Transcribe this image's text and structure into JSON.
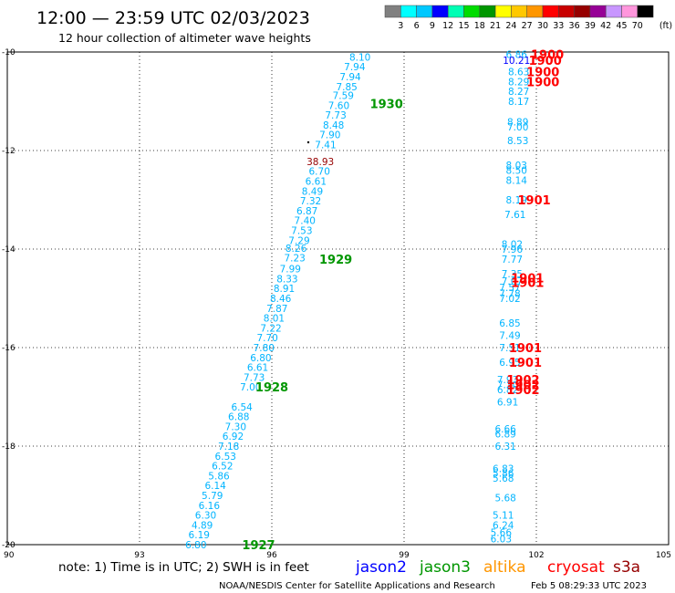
{
  "header": {
    "title": "12:00 — 23:59 UTC 02/03/2023",
    "subtitle": "12 hour collection of altimeter wave heights"
  },
  "colorbar": {
    "colors": [
      "#808080",
      "#00ffff",
      "#00c8ff",
      "#0000ff",
      "#00ffb4",
      "#00dc00",
      "#009600",
      "#ffff00",
      "#ffc800",
      "#ff9600",
      "#ff0000",
      "#c80000",
      "#960000",
      "#960096",
      "#c896ff",
      "#ff96dc",
      "#000000"
    ],
    "labels": [
      "3",
      "6",
      "9",
      "12",
      "15",
      "18",
      "21",
      "24",
      "27",
      "30",
      "33",
      "36",
      "39",
      "42",
      "45",
      "70",
      "(ft)"
    ]
  },
  "footer": {
    "note": "note:  1) Time is in UTC; 2) SWH is in feet",
    "credit": "NOAA/NESDIS Center for Satellite Applications and Research",
    "timestamp": "Feb  5 08:29:33 UTC 2023"
  },
  "legend": [
    {
      "name": "jason2",
      "color": "#0000ff"
    },
    {
      "name": "jason3",
      "color": "#009600"
    },
    {
      "name": "altika",
      "color": "#ff9600"
    },
    {
      "name": "cryosat",
      "color": "#ff0000"
    },
    {
      "name": "s3a",
      "color": "#960000"
    }
  ],
  "chart_data": {
    "type": "scatter",
    "xlim": [
      90,
      105
    ],
    "ylim": [
      -20,
      -10
    ],
    "xticks": [
      "90",
      "93",
      "96",
      "99",
      "102",
      "105"
    ],
    "yticks": [
      "-10",
      "-12",
      "-14",
      "-16",
      "-18",
      "-20"
    ],
    "grid": true,
    "points": [
      {
        "lon": 98.0,
        "lat": -10.1,
        "label": "8.10",
        "color": "#00b4ff"
      },
      {
        "lon": 97.88,
        "lat": -10.3,
        "label": "7.94",
        "color": "#00b4ff"
      },
      {
        "lon": 97.78,
        "lat": -10.5,
        "label": "7.94",
        "color": "#00b4ff"
      },
      {
        "lon": 97.7,
        "lat": -10.7,
        "label": "7.85",
        "color": "#00b4ff"
      },
      {
        "lon": 97.62,
        "lat": -10.88,
        "label": "7.59",
        "color": "#00b4ff"
      },
      {
        "lon": 97.52,
        "lat": -11.08,
        "label": "7.60",
        "color": "#00b4ff"
      },
      {
        "lon": 97.45,
        "lat": -11.28,
        "label": "7.73",
        "color": "#00b4ff"
      },
      {
        "lon": 97.4,
        "lat": -11.48,
        "label": "8.48",
        "color": "#00b4ff"
      },
      {
        "lon": 97.32,
        "lat": -11.68,
        "label": "7.90",
        "color": "#00b4ff"
      },
      {
        "lon": 97.22,
        "lat": -11.88,
        "label": "7.41",
        "color": "#00b4ff"
      },
      {
        "lon": 97.1,
        "lat": -12.22,
        "label": "38.93",
        "color": "#960000"
      },
      {
        "lon": 97.08,
        "lat": -12.42,
        "label": "6.70",
        "color": "#00b4ff"
      },
      {
        "lon": 97.0,
        "lat": -12.62,
        "label": "6.61",
        "color": "#00b4ff"
      },
      {
        "lon": 96.92,
        "lat": -12.82,
        "label": "8.49",
        "color": "#00b4ff"
      },
      {
        "lon": 96.88,
        "lat": -13.02,
        "label": "7.32",
        "color": "#00b4ff"
      },
      {
        "lon": 96.8,
        "lat": -13.22,
        "label": "6.87",
        "color": "#00b4ff"
      },
      {
        "lon": 96.75,
        "lat": -13.42,
        "label": "7.40",
        "color": "#00b4ff"
      },
      {
        "lon": 96.68,
        "lat": -13.62,
        "label": "7.53",
        "color": "#00b4ff"
      },
      {
        "lon": 96.62,
        "lat": -13.82,
        "label": "7.29",
        "color": "#00b4ff"
      },
      {
        "lon": 96.55,
        "lat": -13.98,
        "label": "8.26",
        "color": "#00b4ff"
      },
      {
        "lon": 96.52,
        "lat": -14.18,
        "label": "7.23",
        "color": "#00b4ff"
      },
      {
        "lon": 96.42,
        "lat": -14.4,
        "label": "7.99",
        "color": "#00b4ff"
      },
      {
        "lon": 96.35,
        "lat": -14.6,
        "label": "8.33",
        "color": "#00b4ff"
      },
      {
        "lon": 96.28,
        "lat": -14.8,
        "label": "8.91",
        "color": "#00b4ff"
      },
      {
        "lon": 96.2,
        "lat": -15.0,
        "label": "8.46",
        "color": "#00b4ff"
      },
      {
        "lon": 96.12,
        "lat": -15.2,
        "label": "7.87",
        "color": "#00b4ff"
      },
      {
        "lon": 96.05,
        "lat": -15.4,
        "label": "8.01",
        "color": "#00b4ff"
      },
      {
        "lon": 95.98,
        "lat": -15.6,
        "label": "7.22",
        "color": "#00b4ff"
      },
      {
        "lon": 95.9,
        "lat": -15.8,
        "label": "7.70",
        "color": "#00b4ff"
      },
      {
        "lon": 95.82,
        "lat": -16.0,
        "label": "7.80",
        "color": "#00b4ff"
      },
      {
        "lon": 95.75,
        "lat": -16.2,
        "label": "6.80",
        "color": "#00b4ff"
      },
      {
        "lon": 95.68,
        "lat": -16.4,
        "label": "6.61",
        "color": "#00b4ff"
      },
      {
        "lon": 95.6,
        "lat": -16.6,
        "label": "7.73",
        "color": "#00b4ff"
      },
      {
        "lon": 95.52,
        "lat": -16.8,
        "label": "7.00",
        "color": "#00b4ff"
      },
      {
        "lon": 95.32,
        "lat": -17.2,
        "label": "6.54",
        "color": "#00b4ff"
      },
      {
        "lon": 95.25,
        "lat": -17.4,
        "label": "6.88",
        "color": "#00b4ff"
      },
      {
        "lon": 95.18,
        "lat": -17.6,
        "label": "7.30",
        "color": "#00b4ff"
      },
      {
        "lon": 95.12,
        "lat": -17.8,
        "label": "6.92",
        "color": "#00b4ff"
      },
      {
        "lon": 95.02,
        "lat": -18.0,
        "label": "7.18",
        "color": "#00b4ff"
      },
      {
        "lon": 94.95,
        "lat": -18.2,
        "label": "6.53",
        "color": "#00b4ff"
      },
      {
        "lon": 94.88,
        "lat": -18.4,
        "label": "6.52",
        "color": "#00b4ff"
      },
      {
        "lon": 94.8,
        "lat": -18.6,
        "label": "5.86",
        "color": "#00b4ff"
      },
      {
        "lon": 94.72,
        "lat": -18.8,
        "label": "6.14",
        "color": "#00b4ff"
      },
      {
        "lon": 94.65,
        "lat": -19.0,
        "label": "5.79",
        "color": "#00b4ff"
      },
      {
        "lon": 94.58,
        "lat": -19.2,
        "label": "6.16",
        "color": "#00b4ff"
      },
      {
        "lon": 94.5,
        "lat": -19.4,
        "label": "6.30",
        "color": "#00b4ff"
      },
      {
        "lon": 94.42,
        "lat": -19.6,
        "label": "4.89",
        "color": "#00b4ff"
      },
      {
        "lon": 94.35,
        "lat": -19.8,
        "label": "6.19",
        "color": "#00b4ff"
      },
      {
        "lon": 94.28,
        "lat": -20.0,
        "label": "6.80",
        "color": "#00b4ff"
      },
      {
        "lon": 101.55,
        "lat": -10.05,
        "label": "6.86",
        "color": "#00b4ff"
      },
      {
        "lon": 101.55,
        "lat": -10.17,
        "label": "10.21",
        "color": "#0000ff"
      },
      {
        "lon": 101.6,
        "lat": -10.4,
        "label": "8.63",
        "color": "#00b4ff"
      },
      {
        "lon": 101.6,
        "lat": -10.6,
        "label": "8.29",
        "color": "#00b4ff"
      },
      {
        "lon": 101.6,
        "lat": -10.8,
        "label": "8.27",
        "color": "#00b4ff"
      },
      {
        "lon": 101.6,
        "lat": -11.0,
        "label": "8.17",
        "color": "#00b4ff"
      },
      {
        "lon": 101.58,
        "lat": -11.42,
        "label": "8.89",
        "color": "#00b4ff"
      },
      {
        "lon": 101.58,
        "lat": -11.52,
        "label": "7.00",
        "color": "#00b4ff"
      },
      {
        "lon": 101.58,
        "lat": -11.8,
        "label": "8.53",
        "color": "#00b4ff"
      },
      {
        "lon": 101.55,
        "lat": -12.3,
        "label": "8.03",
        "color": "#00b4ff"
      },
      {
        "lon": 101.55,
        "lat": -12.4,
        "label": "8.50",
        "color": "#00b4ff"
      },
      {
        "lon": 101.55,
        "lat": -12.6,
        "label": "8.14",
        "color": "#00b4ff"
      },
      {
        "lon": 101.55,
        "lat": -13.0,
        "label": "8.19",
        "color": "#00b4ff"
      },
      {
        "lon": 101.52,
        "lat": -13.3,
        "label": "7.61",
        "color": "#00b4ff"
      },
      {
        "lon": 101.45,
        "lat": -13.9,
        "label": "8.02",
        "color": "#00b4ff"
      },
      {
        "lon": 101.45,
        "lat": -14.0,
        "label": "7.96",
        "color": "#00b4ff"
      },
      {
        "lon": 101.45,
        "lat": -14.2,
        "label": "7.77",
        "color": "#00b4ff"
      },
      {
        "lon": 101.45,
        "lat": -14.5,
        "label": "7.35",
        "color": "#00b4ff"
      },
      {
        "lon": 101.45,
        "lat": -14.65,
        "label": "7.07",
        "color": "#00b4ff"
      },
      {
        "lon": 101.4,
        "lat": -14.78,
        "label": "7.57",
        "color": "#00b4ff"
      },
      {
        "lon": 101.4,
        "lat": -14.9,
        "label": "7.78",
        "color": "#00b4ff"
      },
      {
        "lon": 101.4,
        "lat": -15.0,
        "label": "7.02",
        "color": "#00b4ff"
      },
      {
        "lon": 101.4,
        "lat": -15.5,
        "label": "6.85",
        "color": "#00b4ff"
      },
      {
        "lon": 101.4,
        "lat": -15.75,
        "label": "7.49",
        "color": "#00b4ff"
      },
      {
        "lon": 101.4,
        "lat": -16.0,
        "label": "7.51",
        "color": "#00b4ff"
      },
      {
        "lon": 101.4,
        "lat": -16.3,
        "label": "6.95",
        "color": "#00b4ff"
      },
      {
        "lon": 101.35,
        "lat": -16.65,
        "label": "7.93",
        "color": "#00b4ff"
      },
      {
        "lon": 101.35,
        "lat": -16.75,
        "label": "7.30",
        "color": "#00b4ff"
      },
      {
        "lon": 101.35,
        "lat": -16.85,
        "label": "6.82",
        "color": "#00b4ff"
      },
      {
        "lon": 101.35,
        "lat": -17.1,
        "label": "6.91",
        "color": "#00b4ff"
      },
      {
        "lon": 101.3,
        "lat": -17.65,
        "label": "6.66",
        "color": "#00b4ff"
      },
      {
        "lon": 101.3,
        "lat": -17.75,
        "label": "6.89",
        "color": "#00b4ff"
      },
      {
        "lon": 101.3,
        "lat": -18.0,
        "label": "6.31",
        "color": "#00b4ff"
      },
      {
        "lon": 101.25,
        "lat": -18.45,
        "label": "6.83",
        "color": "#00b4ff"
      },
      {
        "lon": 101.25,
        "lat": -18.55,
        "label": "5.86",
        "color": "#00b4ff"
      },
      {
        "lon": 101.25,
        "lat": -18.65,
        "label": "5.68",
        "color": "#00b4ff"
      },
      {
        "lon": 101.3,
        "lat": -19.05,
        "label": "5.68",
        "color": "#00b4ff"
      },
      {
        "lon": 101.25,
        "lat": -19.4,
        "label": "5.11",
        "color": "#00b4ff"
      },
      {
        "lon": 101.25,
        "lat": -19.6,
        "label": "6.24",
        "color": "#00b4ff"
      },
      {
        "lon": 101.2,
        "lat": -19.75,
        "label": "5.66",
        "color": "#00b4ff"
      },
      {
        "lon": 101.2,
        "lat": -19.88,
        "label": "6.03",
        "color": "#00b4ff"
      }
    ],
    "time_labels": [
      {
        "lon": 98.6,
        "lat": -11.05,
        "label": "1930",
        "color": "#009600"
      },
      {
        "lon": 97.45,
        "lat": -14.2,
        "label": "1929",
        "color": "#009600"
      },
      {
        "lon": 96.0,
        "lat": -16.8,
        "label": "1928",
        "color": "#009600"
      },
      {
        "lon": 95.7,
        "lat": -20.0,
        "label": "1927",
        "color": "#009600"
      },
      {
        "lon": 102.25,
        "lat": -10.05,
        "label": "1900",
        "color": "#ff0000"
      },
      {
        "lon": 102.2,
        "lat": -10.17,
        "label": "1900",
        "color": "#ff0000"
      },
      {
        "lon": 102.15,
        "lat": -10.4,
        "label": "1900",
        "color": "#ff0000"
      },
      {
        "lon": 102.15,
        "lat": -10.6,
        "label": "1900",
        "color": "#ff0000"
      },
      {
        "lon": 101.95,
        "lat": -13.0,
        "label": "1901",
        "color": "#ff0000"
      },
      {
        "lon": 101.8,
        "lat": -14.58,
        "label": "1901",
        "color": "#ff0000"
      },
      {
        "lon": 101.8,
        "lat": -14.68,
        "label": "1901",
        "color": "#ff0000"
      },
      {
        "lon": 101.75,
        "lat": -16.0,
        "label": "1901",
        "color": "#ff0000"
      },
      {
        "lon": 101.75,
        "lat": -16.3,
        "label": "1901",
        "color": "#ff0000"
      },
      {
        "lon": 101.7,
        "lat": -16.65,
        "label": "1902",
        "color": "#ff0000"
      },
      {
        "lon": 101.7,
        "lat": -16.75,
        "label": "1902",
        "color": "#ff0000"
      },
      {
        "lon": 101.7,
        "lat": -16.85,
        "label": "1902",
        "color": "#ff0000"
      }
    ]
  }
}
